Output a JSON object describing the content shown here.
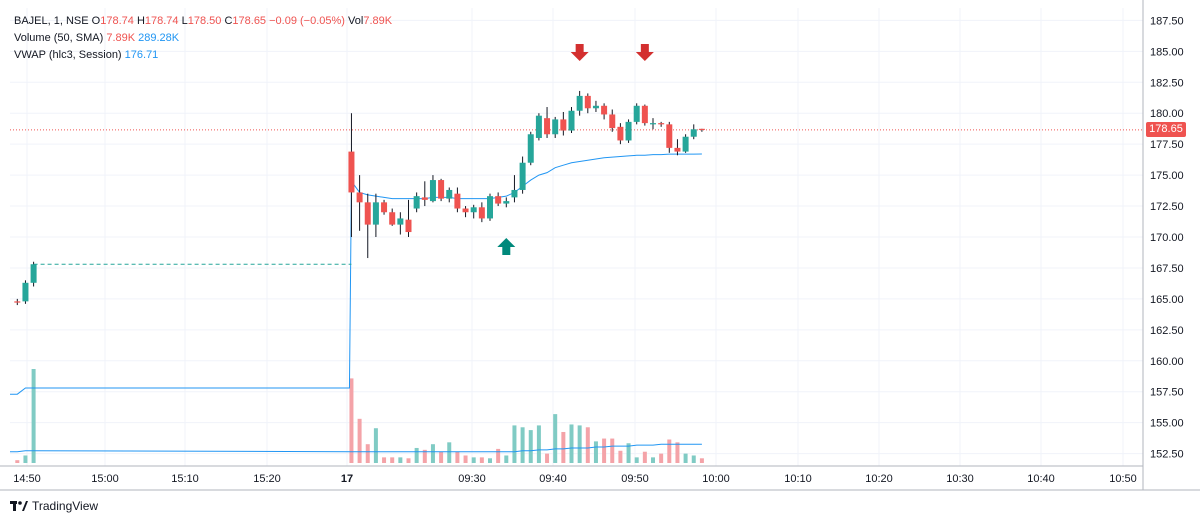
{
  "legend": {
    "symbol": "BAJEL, 1, NSE",
    "open_label": "O",
    "open": "178.74",
    "high_label": "H",
    "high": "178.74",
    "low_label": "L",
    "low": "178.50",
    "close_label": "C",
    "close": "178.65",
    "change": "−0.09 (−0.05%)",
    "vol_label": "Vol",
    "vol": "7.89K",
    "volume_label": "Volume (50, SMA)",
    "volume_value": "7.89K",
    "volume_sma": "289.28K",
    "vwap_label": "VWAP (hlc3, Session)",
    "vwap_value": "176.71"
  },
  "last_price_tag": "178.65",
  "footer": {
    "brand": "TradingView"
  },
  "colors": {
    "up": "#26a69a",
    "down": "#ef5350",
    "vwap": "#2196f3",
    "vol_up": "#80cbc4",
    "vol_down": "#f4a3a8",
    "grid": "#f0f3fa",
    "text": "#131722"
  },
  "chart_data": {
    "type": "candlestick",
    "symbol": "BAJEL",
    "interval": "1",
    "exchange": "NSE",
    "y_axis": {
      "ticks": [
        152.5,
        155.0,
        157.5,
        160.0,
        162.5,
        165.0,
        167.5,
        170.0,
        172.5,
        175.0,
        177.5,
        180.0,
        182.5,
        185.0,
        187.5
      ],
      "range": [
        151.5,
        188.5
      ],
      "side": "right"
    },
    "x_axis": {
      "ticks": [
        "14:50",
        "15:00",
        "15:10",
        "15:20",
        "17",
        "09:30",
        "09:40",
        "09:50",
        "10:00",
        "10:10",
        "10:20",
        "10:30",
        "10:40",
        "10:50"
      ]
    },
    "last_price": 178.65,
    "candles": [
      {
        "o": 164.8,
        "h": 165.0,
        "l": 164.5,
        "c": 164.7
      },
      {
        "o": 164.8,
        "h": 166.5,
        "l": 164.6,
        "c": 166.3
      },
      {
        "o": 166.3,
        "h": 168.0,
        "l": 166.0,
        "c": 167.8
      },
      {
        "o": 176.9,
        "h": 180.0,
        "l": 170.0,
        "c": 173.6
      },
      {
        "o": 173.6,
        "h": 175.0,
        "l": 170.5,
        "c": 172.8
      },
      {
        "o": 172.8,
        "h": 173.5,
        "l": 168.3,
        "c": 171.0
      },
      {
        "o": 171.0,
        "h": 173.5,
        "l": 170.0,
        "c": 172.8
      },
      {
        "o": 172.8,
        "h": 173.0,
        "l": 171.8,
        "c": 172.0
      },
      {
        "o": 172.0,
        "h": 172.3,
        "l": 170.9,
        "c": 171.0
      },
      {
        "o": 171.0,
        "h": 172.0,
        "l": 170.2,
        "c": 171.5
      },
      {
        "o": 171.4,
        "h": 173.0,
        "l": 170.0,
        "c": 170.4
      },
      {
        "o": 172.3,
        "h": 173.6,
        "l": 172.0,
        "c": 173.3
      },
      {
        "o": 173.2,
        "h": 174.5,
        "l": 172.5,
        "c": 173.0
      },
      {
        "o": 172.9,
        "h": 175.0,
        "l": 172.8,
        "c": 174.6
      },
      {
        "o": 174.6,
        "h": 174.7,
        "l": 172.9,
        "c": 173.1
      },
      {
        "o": 173.1,
        "h": 174.0,
        "l": 172.8,
        "c": 173.8
      },
      {
        "o": 173.5,
        "h": 174.0,
        "l": 172.0,
        "c": 172.3
      },
      {
        "o": 172.3,
        "h": 172.5,
        "l": 171.6,
        "c": 172.0
      },
      {
        "o": 172.0,
        "h": 172.6,
        "l": 171.5,
        "c": 172.4
      },
      {
        "o": 172.4,
        "h": 172.8,
        "l": 171.2,
        "c": 171.5
      },
      {
        "o": 171.5,
        "h": 173.5,
        "l": 171.3,
        "c": 173.3
      },
      {
        "o": 173.3,
        "h": 173.6,
        "l": 172.5,
        "c": 172.7
      },
      {
        "o": 172.7,
        "h": 173.2,
        "l": 172.4,
        "c": 172.9
      },
      {
        "o": 173.2,
        "h": 175.0,
        "l": 172.8,
        "c": 173.8
      },
      {
        "o": 173.8,
        "h": 176.5,
        "l": 173.5,
        "c": 176.0
      },
      {
        "o": 176.0,
        "h": 178.5,
        "l": 175.8,
        "c": 178.3
      },
      {
        "o": 178.0,
        "h": 180.0,
        "l": 177.8,
        "c": 179.8
      },
      {
        "o": 179.6,
        "h": 180.5,
        "l": 178.0,
        "c": 178.3
      },
      {
        "o": 178.3,
        "h": 179.7,
        "l": 178.0,
        "c": 179.5
      },
      {
        "o": 179.5,
        "h": 180.1,
        "l": 178.2,
        "c": 178.6
      },
      {
        "o": 178.6,
        "h": 180.5,
        "l": 178.4,
        "c": 180.2
      },
      {
        "o": 180.2,
        "h": 181.8,
        "l": 179.8,
        "c": 181.4
      },
      {
        "o": 181.4,
        "h": 181.6,
        "l": 180.0,
        "c": 180.4
      },
      {
        "o": 180.4,
        "h": 181.0,
        "l": 180.1,
        "c": 180.6
      },
      {
        "o": 180.6,
        "h": 180.8,
        "l": 179.5,
        "c": 179.9
      },
      {
        "o": 179.9,
        "h": 180.3,
        "l": 178.5,
        "c": 178.8
      },
      {
        "o": 178.9,
        "h": 179.2,
        "l": 177.5,
        "c": 177.8
      },
      {
        "o": 177.8,
        "h": 179.5,
        "l": 177.6,
        "c": 179.3
      },
      {
        "o": 179.3,
        "h": 180.8,
        "l": 179.1,
        "c": 180.6
      },
      {
        "o": 180.6,
        "h": 180.7,
        "l": 179.0,
        "c": 179.2
      },
      {
        "o": 179.1,
        "h": 179.6,
        "l": 178.7,
        "c": 179.2
      },
      {
        "o": 179.2,
        "h": 179.3,
        "l": 178.9,
        "c": 179.1
      },
      {
        "o": 179.1,
        "h": 179.3,
        "l": 176.8,
        "c": 177.2
      },
      {
        "o": 177.2,
        "h": 177.9,
        "l": 176.6,
        "c": 176.9
      },
      {
        "o": 176.9,
        "h": 178.3,
        "l": 176.8,
        "c": 178.1
      },
      {
        "o": 178.1,
        "h": 179.1,
        "l": 177.9,
        "c": 178.7
      },
      {
        "o": 178.74,
        "h": 178.74,
        "l": 178.5,
        "c": 178.65
      }
    ],
    "vwap_series": [
      157.3,
      157.8,
      157.8,
      174.5,
      173.6,
      173.4,
      173.3,
      173.2,
      173.1,
      173.1,
      173.1,
      173.1,
      173.1,
      173.2,
      173.2,
      173.2,
      173.1,
      173.1,
      173.1,
      173.1,
      173.1,
      173.2,
      173.3,
      173.6,
      174.1,
      174.6,
      175.0,
      175.2,
      175.6,
      175.8,
      176.0,
      176.1,
      176.2,
      176.3,
      176.4,
      176.45,
      176.5,
      176.55,
      176.6,
      176.6,
      176.65,
      176.65,
      176.7,
      176.7,
      176.7,
      176.7,
      176.71
    ],
    "volume_series": [
      0.03,
      0.08,
      1.0,
      0.9,
      0.47,
      0.2,
      0.37,
      0.06,
      0.06,
      0.06,
      0.05,
      0.16,
      0.14,
      0.2,
      0.12,
      0.22,
      0.12,
      0.08,
      0.06,
      0.06,
      0.05,
      0.15,
      0.08,
      0.4,
      0.38,
      0.35,
      0.4,
      0.1,
      0.52,
      0.33,
      0.41,
      0.4,
      0.38,
      0.23,
      0.26,
      0.26,
      0.13,
      0.21,
      0.06,
      0.12,
      0.06,
      0.1,
      0.25,
      0.22,
      0.1,
      0.08,
      0.05
    ],
    "volume_sma_series": [
      0.12,
      0.13,
      0.13,
      0.12,
      0.12,
      0.12,
      0.12,
      0.12,
      0.12,
      0.12,
      0.12,
      0.12,
      0.12,
      0.12,
      0.12,
      0.12,
      0.12,
      0.12,
      0.12,
      0.12,
      0.12,
      0.12,
      0.12,
      0.12,
      0.13,
      0.13,
      0.14,
      0.14,
      0.15,
      0.15,
      0.16,
      0.16,
      0.16,
      0.17,
      0.17,
      0.18,
      0.18,
      0.18,
      0.19,
      0.19,
      0.19,
      0.2,
      0.2,
      0.2,
      0.2,
      0.2,
      0.2
    ],
    "signals": [
      {
        "type": "sell",
        "candle": 31
      },
      {
        "type": "sell",
        "candle": 39
      },
      {
        "type": "buy",
        "candle": 22
      }
    ],
    "grid": true
  }
}
